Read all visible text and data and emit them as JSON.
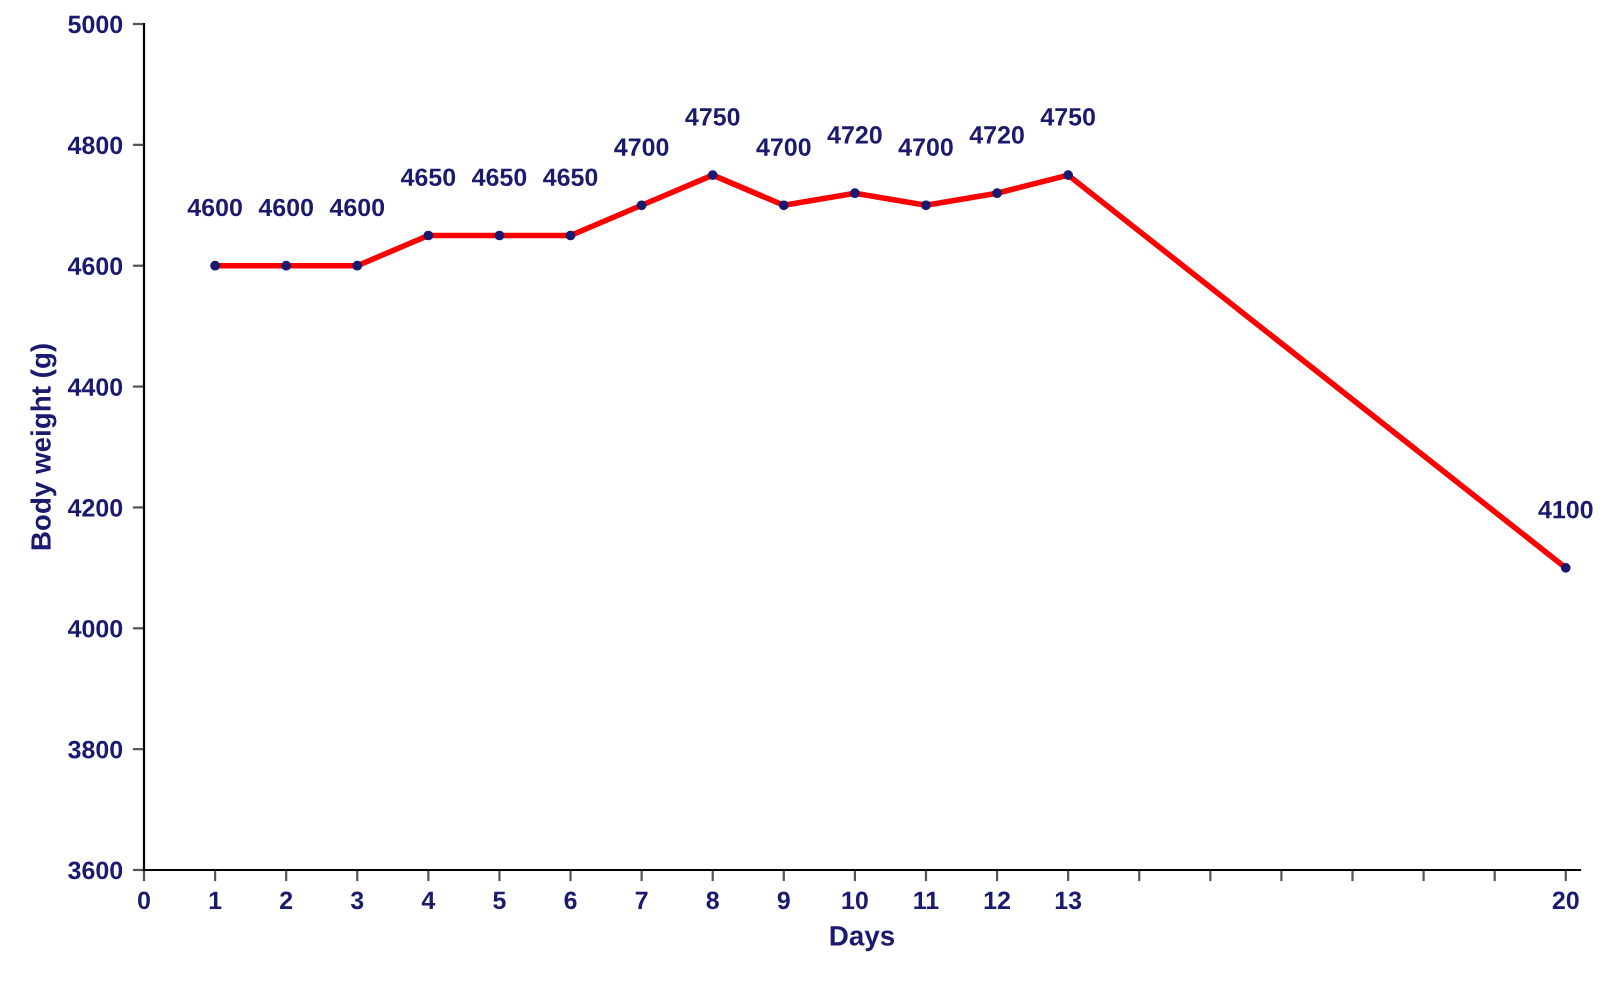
{
  "chart_data": {
    "type": "line",
    "xlabel": "Days",
    "ylabel": "Body weight (g)",
    "x": [
      1,
      2,
      3,
      4,
      5,
      6,
      7,
      8,
      9,
      10,
      11,
      12,
      13,
      20
    ],
    "series": [
      {
        "color": "#ff0000",
        "values": [
          4600,
          4600,
          4600,
          4650,
          4650,
          4650,
          4700,
          4750,
          4700,
          4720,
          4700,
          4720,
          4750,
          4100
        ]
      }
    ],
    "xlim": [
      0,
      20.2
    ],
    "xticks": [
      0,
      1,
      2,
      3,
      4,
      5,
      6,
      7,
      8,
      9,
      10,
      11,
      12,
      13,
      {
        "value": 14,
        "label": null
      },
      {
        "value": 15,
        "label": null
      },
      {
        "value": 16,
        "label": null
      },
      {
        "value": 17,
        "label": null
      },
      {
        "value": 18,
        "label": null
      },
      {
        "value": 19,
        "label": null
      },
      20
    ],
    "ylim": [
      3600,
      5000
    ],
    "yticks": [
      3600,
      3800,
      4000,
      4200,
      4400,
      4600,
      4800,
      5000
    ],
    "data_labels": true,
    "grid": false,
    "marker": "circle",
    "line_style": "solid"
  }
}
